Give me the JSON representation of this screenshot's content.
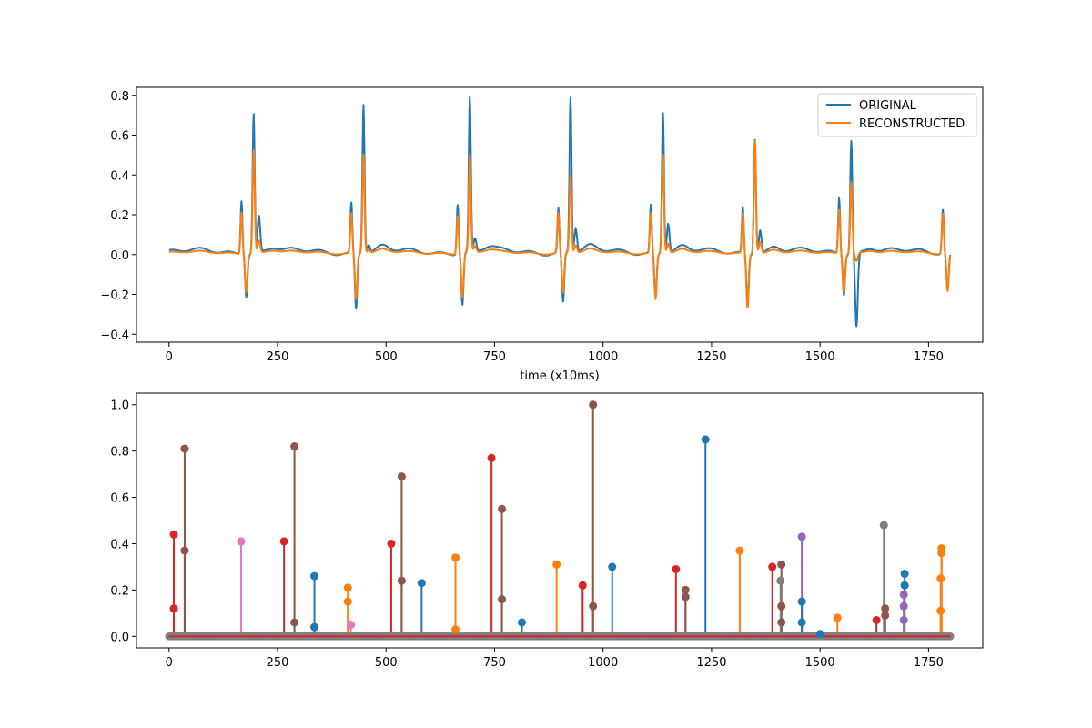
{
  "colors": {
    "original": "#1f77b4",
    "reconstructed": "#ff7f0e",
    "baseline": "#d62728",
    "stem_palette": [
      "#1f77b4",
      "#ff7f0e",
      "#2ca02c",
      "#d62728",
      "#9467bd",
      "#8c564b",
      "#e377c2",
      "#7f7f7f"
    ]
  },
  "chart_data": [
    {
      "type": "line",
      "title": "",
      "xlabel": "time (x10ms)",
      "ylabel": "",
      "xlim": [
        -75,
        1875
      ],
      "ylim": [
        -0.44,
        0.84
      ],
      "xticks": [
        0,
        250,
        500,
        750,
        1000,
        1250,
        1500,
        1750
      ],
      "yticks": [
        -0.4,
        -0.2,
        0.0,
        0.2,
        0.4,
        0.6,
        0.8
      ],
      "xtick_labels": [
        "0",
        "250",
        "500",
        "750",
        "1000",
        "1250",
        "1500",
        "1750"
      ],
      "ytick_labels": [
        "−0.4",
        "−0.2",
        "0.0",
        "0.2",
        "0.4",
        "0.6",
        "0.8"
      ],
      "legend": {
        "position": "upper-right",
        "entries": [
          "ORIGINAL",
          "RECONSTRUCTED"
        ]
      },
      "beats": [
        {
          "t": 195,
          "p_orig": 0.27,
          "q_orig": -0.21,
          "r_orig": 0.7,
          "s_orig": 0.18,
          "p_rec": 0.21,
          "q_rec": -0.19,
          "r_rec": 0.52,
          "s_rec": 0.06
        },
        {
          "t": 448,
          "p_orig": 0.25,
          "q_orig": -0.28,
          "r_orig": 0.75,
          "s_orig": 0.04,
          "p_rec": 0.2,
          "q_rec": -0.23,
          "r_rec": 0.5,
          "s_rec": 0.02
        },
        {
          "t": 693,
          "p_orig": 0.25,
          "q_orig": -0.26,
          "r_orig": 0.77,
          "s_orig": 0.06,
          "p_rec": 0.19,
          "q_rec": -0.22,
          "r_rec": 0.49,
          "s_rec": 0.03
        },
        {
          "t": 925,
          "p_orig": 0.22,
          "q_orig": -0.25,
          "r_orig": 0.78,
          "s_orig": 0.12,
          "p_rec": 0.2,
          "q_rec": -0.2,
          "r_rec": 0.4,
          "s_rec": 0.04
        },
        {
          "t": 1138,
          "p_orig": 0.24,
          "q_orig": -0.22,
          "r_orig": 0.71,
          "s_orig": 0.15,
          "p_rec": 0.2,
          "q_rec": -0.23,
          "r_rec": 0.5,
          "s_rec": 0.05
        },
        {
          "t": 1350,
          "p_orig": 0.23,
          "q_orig": -0.27,
          "r_orig": 0.58,
          "s_orig": 0.12,
          "p_rec": 0.2,
          "q_rec": -0.27,
          "r_rec": 0.57,
          "s_rec": 0.06
        },
        {
          "t": 1572,
          "p_orig": 0.28,
          "q_orig": -0.2,
          "r_orig": 0.57,
          "s_orig": -0.37,
          "p_rec": 0.22,
          "q_rec": -0.19,
          "r_rec": 0.36,
          "s_rec": -0.04
        }
      ],
      "tail": {
        "t": 1783,
        "p_orig": 0.22,
        "q_orig": -0.19,
        "p_rec": 0.2,
        "q_rec": -0.19
      },
      "series": [
        {
          "name": "ORIGINAL",
          "color_key": "original"
        },
        {
          "name": "RECONSTRUCTED",
          "color_key": "reconstructed"
        }
      ]
    },
    {
      "type": "stem",
      "title": "",
      "xlabel": "",
      "ylabel": "",
      "xlim": [
        -75,
        1875
      ],
      "ylim": [
        -0.05,
        1.05
      ],
      "xticks": [
        0,
        250,
        500,
        750,
        1000,
        1250,
        1500,
        1750
      ],
      "yticks": [
        0.0,
        0.2,
        0.4,
        0.6,
        0.8,
        1.0
      ],
      "xtick_labels": [
        "0",
        "250",
        "500",
        "750",
        "1000",
        "1250",
        "1500",
        "1750"
      ],
      "ytick_labels": [
        "0.0",
        "0.2",
        "0.4",
        "0.6",
        "0.8",
        "1.0"
      ],
      "baseline_range": [
        0,
        1800
      ],
      "stems": [
        {
          "x": 11,
          "y": 0.44,
          "c": 3
        },
        {
          "x": 11,
          "y": 0.12,
          "c": 3
        },
        {
          "x": 36,
          "y": 0.81,
          "c": 5
        },
        {
          "x": 36,
          "y": 0.37,
          "c": 5
        },
        {
          "x": 166,
          "y": 0.41,
          "c": 6
        },
        {
          "x": 265,
          "y": 0.41,
          "c": 3
        },
        {
          "x": 289,
          "y": 0.82,
          "c": 5
        },
        {
          "x": 289,
          "y": 0.06,
          "c": 5
        },
        {
          "x": 335,
          "y": 0.26,
          "c": 0
        },
        {
          "x": 335,
          "y": 0.04,
          "c": 0
        },
        {
          "x": 412,
          "y": 0.21,
          "c": 1
        },
        {
          "x": 412,
          "y": 0.15,
          "c": 1
        },
        {
          "x": 419,
          "y": 0.05,
          "c": 6
        },
        {
          "x": 512,
          "y": 0.4,
          "c": 3
        },
        {
          "x": 536,
          "y": 0.69,
          "c": 5
        },
        {
          "x": 536,
          "y": 0.24,
          "c": 5
        },
        {
          "x": 582,
          "y": 0.23,
          "c": 0
        },
        {
          "x": 660,
          "y": 0.34,
          "c": 1
        },
        {
          "x": 660,
          "y": 0.03,
          "c": 1
        },
        {
          "x": 743,
          "y": 0.77,
          "c": 3
        },
        {
          "x": 767,
          "y": 0.55,
          "c": 5
        },
        {
          "x": 767,
          "y": 0.16,
          "c": 5
        },
        {
          "x": 813,
          "y": 0.06,
          "c": 0
        },
        {
          "x": 893,
          "y": 0.31,
          "c": 1
        },
        {
          "x": 953,
          "y": 0.22,
          "c": 3
        },
        {
          "x": 977,
          "y": 1.0,
          "c": 5
        },
        {
          "x": 977,
          "y": 0.13,
          "c": 5
        },
        {
          "x": 1021,
          "y": 0.3,
          "c": 0
        },
        {
          "x": 1168,
          "y": 0.29,
          "c": 3
        },
        {
          "x": 1190,
          "y": 0.2,
          "c": 5
        },
        {
          "x": 1190,
          "y": 0.17,
          "c": 5
        },
        {
          "x": 1236,
          "y": 0.85,
          "c": 0
        },
        {
          "x": 1315,
          "y": 0.37,
          "c": 1
        },
        {
          "x": 1390,
          "y": 0.3,
          "c": 3
        },
        {
          "x": 1411,
          "y": 0.31,
          "c": 5
        },
        {
          "x": 1411,
          "y": 0.13,
          "c": 5
        },
        {
          "x": 1411,
          "y": 0.06,
          "c": 5
        },
        {
          "x": 1409,
          "y": 0.24,
          "c": 7
        },
        {
          "x": 1458,
          "y": 0.43,
          "c": 4
        },
        {
          "x": 1458,
          "y": 0.15,
          "c": 0
        },
        {
          "x": 1458,
          "y": 0.06,
          "c": 0
        },
        {
          "x": 1500,
          "y": 0.01,
          "c": 0
        },
        {
          "x": 1540,
          "y": 0.08,
          "c": 1
        },
        {
          "x": 1630,
          "y": 0.07,
          "c": 3
        },
        {
          "x": 1647,
          "y": 0.48,
          "c": 7
        },
        {
          "x": 1650,
          "y": 0.12,
          "c": 5
        },
        {
          "x": 1650,
          "y": 0.09,
          "c": 5
        },
        {
          "x": 1695,
          "y": 0.27,
          "c": 0
        },
        {
          "x": 1695,
          "y": 0.22,
          "c": 0
        },
        {
          "x": 1693,
          "y": 0.18,
          "c": 4
        },
        {
          "x": 1693,
          "y": 0.13,
          "c": 4
        },
        {
          "x": 1693,
          "y": 0.07,
          "c": 4
        },
        {
          "x": 1780,
          "y": 0.38,
          "c": 1
        },
        {
          "x": 1780,
          "y": 0.36,
          "c": 1
        },
        {
          "x": 1778,
          "y": 0.25,
          "c": 1
        },
        {
          "x": 1778,
          "y": 0.11,
          "c": 1
        }
      ]
    }
  ]
}
